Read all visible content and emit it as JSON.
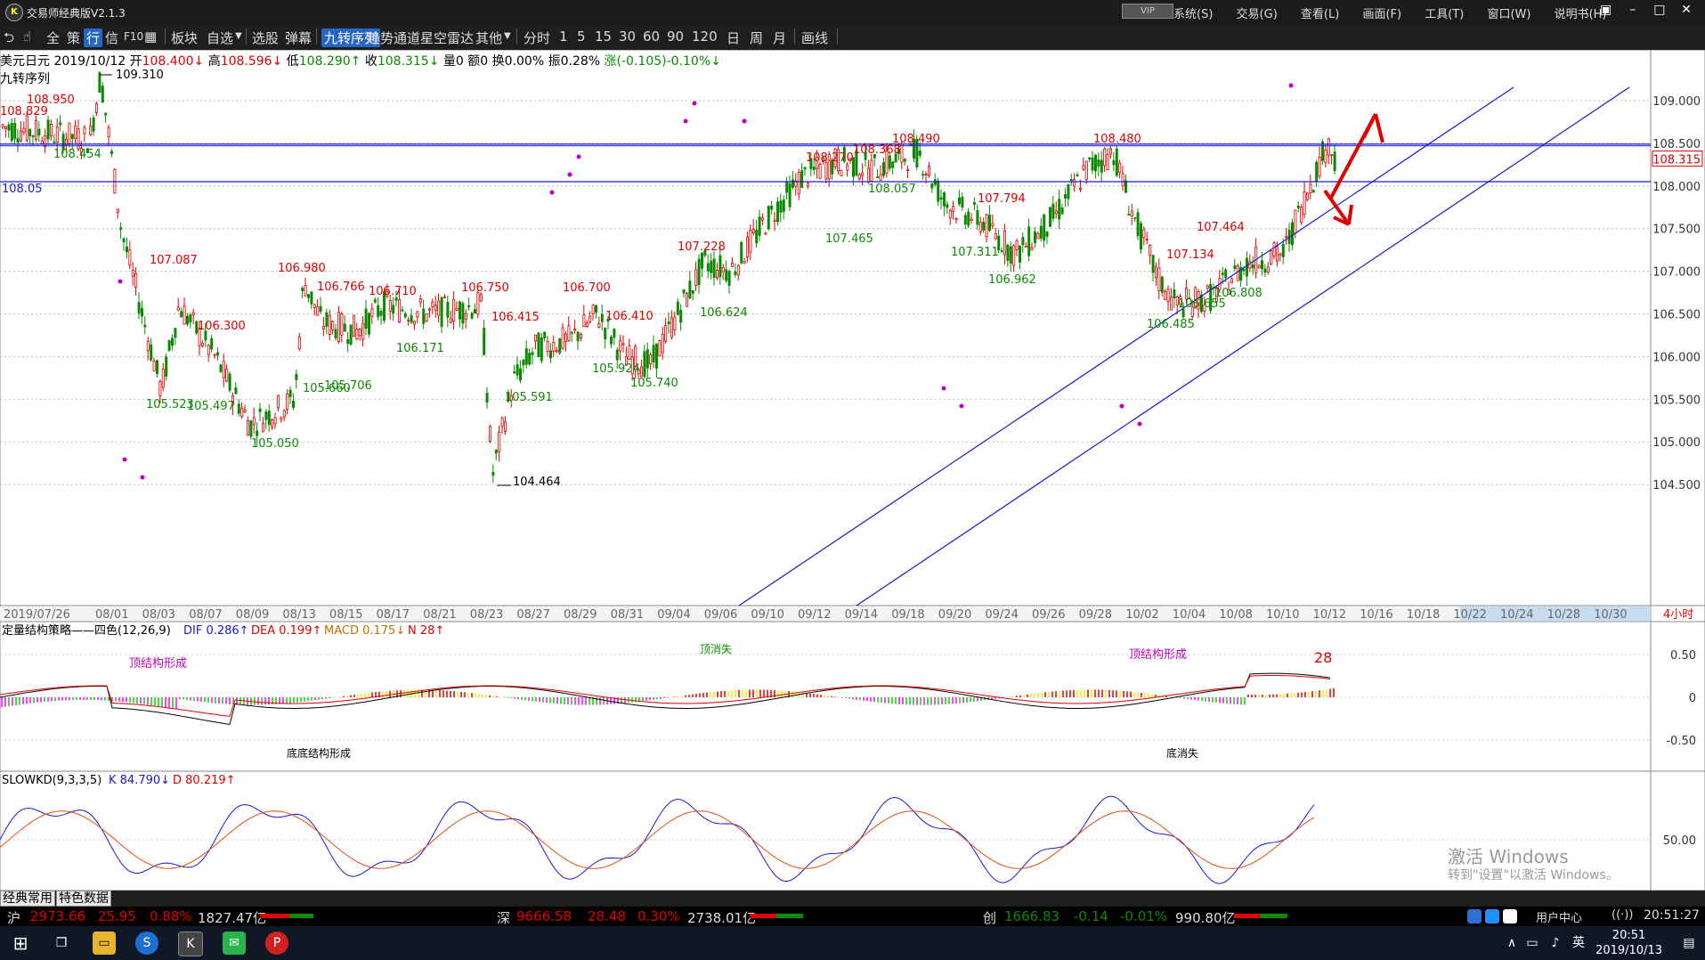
{
  "window": {
    "title": "交易师经典版V2.1.3",
    "vip": "VIP",
    "menus": [
      "系统(S)",
      "交易(G)",
      "查看(L)",
      "画面(F)",
      "工具(T)",
      "窗口(W)",
      "说明书(H)"
    ]
  },
  "toolbar": {
    "items": [
      "全",
      "策",
      "行",
      "信",
      "F10"
    ],
    "board": "板块",
    "watch": "自选",
    "select": "选股",
    "popup": "弹幕",
    "nine": "九转序列",
    "trend": "趋势通道",
    "radar": "星空雷达",
    "other": "其他",
    "periods": [
      "分时",
      "1",
      "5",
      "15",
      "30",
      "60",
      "90",
      "120",
      "日",
      "周",
      "月"
    ],
    "draw": "画线"
  },
  "info": {
    "name": "美元日元",
    "date": "2019/10/12",
    "open_label": "开",
    "open": "108.400↓",
    "high_label": "高",
    "high": "108.596↓",
    "low_label": "低",
    "low": "108.290↑",
    "close_label": "收",
    "close": "108.315↓",
    "vol": "量0",
    "amount": "额0",
    "turnover": "换0.00%",
    "amp": "振0.28%",
    "change": "涨(-0.105)-0.10%↓",
    "series": "九转序列"
  },
  "main_chart": {
    "y_ticks": [
      "109.000",
      "108.500",
      "108.000",
      "107.500",
      "107.000",
      "106.500",
      "106.000",
      "105.500",
      "105.000",
      "104.500"
    ],
    "x_ticks": [
      "2019/07/26",
      "08/01",
      "08/03",
      "08/07",
      "08/09",
      "08/13",
      "08/15",
      "08/17",
      "08/21",
      "08/23",
      "08/27",
      "08/29",
      "08/31",
      "09/04",
      "09/06",
      "09/10",
      "09/12",
      "09/14",
      "09/18",
      "09/20",
      "09/24",
      "09/26",
      "09/28",
      "10/02",
      "10/04",
      "10/08",
      "10/10",
      "10/12",
      "10/16",
      "10/18",
      "10/22",
      "10/24",
      "10/28",
      "10/30"
    ],
    "last_price": "108.315",
    "period": "4小时",
    "hline_label": "108.05",
    "red_labels": [
      "108.829",
      "108.950",
      "107.087",
      "106.300",
      "106.980",
      "106.766",
      "106.710",
      "106.750",
      "106.415",
      "106.700",
      "106.410",
      "107.228",
      "108.270",
      "108.368",
      "108.490",
      "107.794",
      "108.480",
      "107.464",
      "107.134"
    ],
    "green_labels": [
      "108.454",
      "105.523",
      "105.497",
      "105.050",
      "105.660",
      "105.706",
      "106.171",
      "105.591",
      "105.924",
      "105.740",
      "106.624",
      "107.465",
      "108.057",
      "107.311",
      "106.962",
      "106.485",
      "106.655",
      "106.808"
    ],
    "black_labels": [
      "109.310",
      "104.464"
    ]
  },
  "macd": {
    "title": "定量结构策略——四色(12,26,9)",
    "dif": "DIF 0.286↑",
    "dea": "DEA 0.199↑",
    "macd": "MACD 0.175↓",
    "n": "N 28↑",
    "y_ticks": [
      "0.50",
      "0",
      "-0.50"
    ],
    "ann_top": "顶结构形成",
    "ann_top_cancel": "顶消失",
    "ann_bottom_cancel": "底消失",
    "ann_bottom_done": "底底结构形成",
    "count": "28"
  },
  "kd": {
    "title": "SLOWKD(9,3,3,5)",
    "k": "K 84.790↓",
    "d": "D 80.219↑",
    "y_ticks": [
      "50.00"
    ]
  },
  "tabs": [
    "经典常用",
    "特色数据"
  ],
  "ticker": {
    "sh_label": "沪",
    "sh": "2973.66",
    "sh_chg": "25.95",
    "sh_pct": "0.88%",
    "sh_amt": "1827.47亿",
    "sz_label": "深",
    "sz": "9666.58",
    "sz_chg": "28.48",
    "sz_pct": "0.30%",
    "sz_amt": "2738.01亿",
    "cy_label": "创",
    "cy": "1666.83",
    "cy_chg": "-0.14",
    "cy_pct": "-0.01%",
    "cy_amt": "990.80亿",
    "user_center": "用户中心",
    "time": "20:51:27"
  },
  "taskbar": {
    "time": "20:51",
    "date": "2019/10/13",
    "ime": "英"
  },
  "watermark": {
    "title": "激活 Windows",
    "subtitle": "转到\"设置\"以激活 Windows。"
  },
  "colors": {
    "up": "#e00000",
    "down": "#0a8a00",
    "line": "#1a1ad0",
    "nine": "#c000c0"
  }
}
